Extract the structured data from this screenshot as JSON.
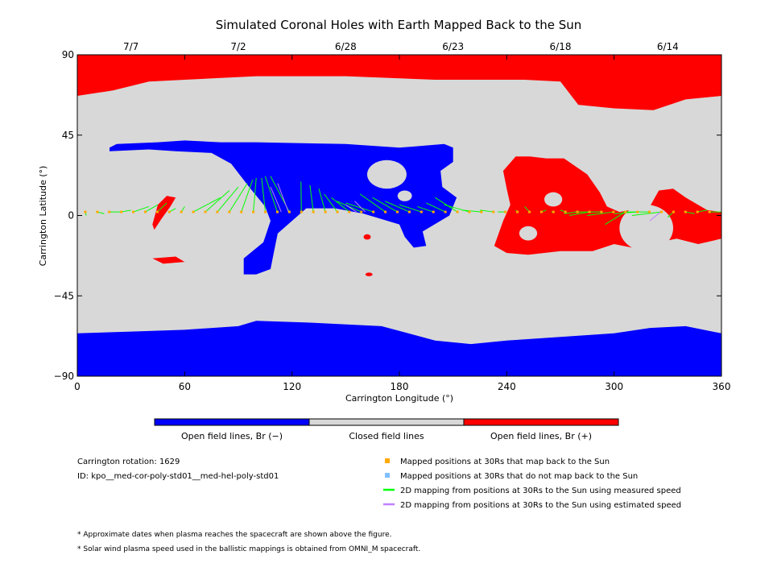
{
  "title": "Simulated Coronal Holes with Earth Mapped Back to the Sun",
  "colors": {
    "open_negative": "#0000ff",
    "closed": "#d8d8d8",
    "open_positive": "#ff0000",
    "mapped_back": "#ffaa00",
    "not_mapped_back": "#80c0ff",
    "measured_speed": "#00ff00",
    "estimated_speed": "#c080ff"
  },
  "chart_data": {
    "type": "map",
    "xlabel": "Carrington Longitude (°)",
    "ylabel": "Carrington Latitude (°)",
    "xlim": [
      0,
      360
    ],
    "ylim": [
      -90,
      90
    ],
    "x_ticks": [
      0,
      60,
      120,
      180,
      240,
      300,
      360
    ],
    "y_ticks": [
      90,
      45,
      0,
      -45,
      -90
    ],
    "y_tick_labels": [
      "90",
      "45",
      "0",
      "−45",
      "−90"
    ],
    "top_dates": [
      {
        "label": "7/7",
        "lon": 30
      },
      {
        "label": "7/2",
        "lon": 90
      },
      {
        "label": "6/28",
        "lon": 150
      },
      {
        "label": "6/23",
        "lon": 210
      },
      {
        "label": "6/18",
        "lon": 270
      },
      {
        "label": "6/14",
        "lon": 330
      }
    ],
    "regions": [
      {
        "polarity": "negative",
        "points": [
          [
            0,
            -66
          ],
          [
            30,
            -65
          ],
          [
            60,
            -64
          ],
          [
            90,
            -62
          ],
          [
            100,
            -59
          ],
          [
            130,
            -60
          ],
          [
            170,
            -62
          ],
          [
            200,
            -70
          ],
          [
            220,
            -72
          ],
          [
            240,
            -70
          ],
          [
            270,
            -68
          ],
          [
            300,
            -66
          ],
          [
            320,
            -63
          ],
          [
            340,
            -62
          ],
          [
            360,
            -66
          ],
          [
            360,
            -90
          ],
          [
            0,
            -90
          ]
        ]
      },
      {
        "polarity": "positive",
        "points": [
          [
            0,
            90
          ],
          [
            360,
            90
          ],
          [
            360,
            67
          ],
          [
            340,
            65
          ],
          [
            322,
            59
          ],
          [
            300,
            60
          ],
          [
            280,
            62
          ],
          [
            270,
            75
          ],
          [
            250,
            76
          ],
          [
            200,
            76
          ],
          [
            150,
            78
          ],
          [
            100,
            78
          ],
          [
            60,
            76
          ],
          [
            40,
            75
          ],
          [
            20,
            70
          ],
          [
            0,
            67
          ]
        ]
      },
      {
        "polarity": "negative",
        "points": [
          [
            18,
            38
          ],
          [
            22,
            40
          ],
          [
            45,
            41
          ],
          [
            60,
            42
          ],
          [
            80,
            41
          ],
          [
            100,
            41
          ],
          [
            150,
            40
          ],
          [
            180,
            38
          ],
          [
            205,
            40
          ],
          [
            210,
            38
          ],
          [
            210,
            30
          ],
          [
            203,
            25
          ],
          [
            204,
            16
          ],
          [
            212,
            10
          ],
          [
            208,
            0
          ],
          [
            193,
            -9
          ],
          [
            195,
            -17
          ],
          [
            188,
            -18
          ],
          [
            183,
            -12
          ],
          [
            180,
            -5
          ],
          [
            160,
            1
          ],
          [
            144,
            4
          ],
          [
            128,
            4
          ],
          [
            112,
            -10
          ],
          [
            110,
            -20
          ],
          [
            108,
            -30
          ],
          [
            100,
            -33
          ],
          [
            93,
            -33
          ],
          [
            93,
            -24
          ],
          [
            104,
            -15
          ],
          [
            108,
            -3
          ],
          [
            105,
            5
          ],
          [
            96,
            16
          ],
          [
            86,
            29
          ],
          [
            75,
            35
          ],
          [
            55,
            36
          ],
          [
            40,
            37
          ],
          [
            18,
            36
          ]
        ]
      },
      {
        "polarity": "positive",
        "points": [
          [
            240,
            15
          ],
          [
            238,
            25
          ],
          [
            245,
            33
          ],
          [
            253,
            33
          ],
          [
            262,
            32
          ],
          [
            272,
            32
          ],
          [
            285,
            23
          ],
          [
            292,
            13
          ],
          [
            296,
            5
          ],
          [
            303,
            2
          ],
          [
            320,
            5
          ],
          [
            325,
            14
          ],
          [
            333,
            15
          ],
          [
            340,
            10
          ],
          [
            352,
            3
          ],
          [
            360,
            2
          ],
          [
            360,
            -13
          ],
          [
            347,
            -16
          ],
          [
            335,
            -13
          ],
          [
            320,
            -16
          ],
          [
            310,
            -18
          ],
          [
            300,
            -16
          ],
          [
            288,
            -20
          ],
          [
            270,
            -20
          ],
          [
            252,
            -22
          ],
          [
            240,
            -21
          ],
          [
            233,
            -17
          ],
          [
            238,
            -3
          ],
          [
            242,
            6
          ]
        ]
      },
      {
        "polarity": "positive",
        "points": [
          [
            42,
            -5
          ],
          [
            45,
            6
          ],
          [
            50,
            11
          ],
          [
            55,
            10
          ],
          [
            52,
            5
          ],
          [
            47,
            -2
          ],
          [
            43,
            -8
          ]
        ]
      },
      {
        "polarity": "positive",
        "points": [
          [
            42,
            -24
          ],
          [
            55,
            -23
          ],
          [
            60,
            -26
          ],
          [
            48,
            -27
          ]
        ]
      }
    ],
    "holes": [
      {
        "cx": 173,
        "cy": 23,
        "rx": 11,
        "ry": 8
      },
      {
        "cx": 183,
        "cy": 11,
        "rx": 4,
        "ry": 3
      },
      {
        "cx": 266,
        "cy": 9,
        "rx": 5,
        "ry": 4
      },
      {
        "cx": 252,
        "cy": -10,
        "rx": 5,
        "ry": 4
      },
      {
        "cx": 318,
        "cy": -7,
        "rx": 15,
        "ry": 13
      }
    ],
    "small_blobs": [
      {
        "polarity": "positive",
        "cx": 162,
        "cy": -12,
        "rx": 2,
        "ry": 1.5
      },
      {
        "polarity": "positive",
        "cx": 163,
        "cy": -33,
        "rx": 2,
        "ry": 1
      }
    ],
    "mapped_longitudes_start": 2,
    "mapped_longitudes_step": 3,
    "mapped_latitude": 2,
    "measured_mappings": [
      [
        5,
        0
      ],
      [
        15,
        1
      ],
      [
        25,
        2
      ],
      [
        30,
        3
      ],
      [
        40,
        5
      ],
      [
        45,
        6
      ],
      [
        50,
        7
      ],
      [
        55,
        4
      ],
      [
        60,
        5
      ],
      [
        80,
        10
      ],
      [
        85,
        14
      ],
      [
        90,
        16
      ],
      [
        95,
        18
      ],
      [
        98,
        20
      ],
      [
        100,
        21
      ],
      [
        103,
        21
      ],
      [
        105,
        22
      ],
      [
        108,
        22
      ],
      [
        125,
        19
      ],
      [
        130,
        17
      ],
      [
        135,
        15
      ],
      [
        138,
        12
      ],
      [
        142,
        10
      ],
      [
        145,
        8
      ],
      [
        150,
        7
      ],
      [
        158,
        12
      ],
      [
        165,
        10
      ],
      [
        172,
        8
      ],
      [
        180,
        6
      ],
      [
        190,
        5
      ],
      [
        195,
        7
      ],
      [
        200,
        10
      ],
      [
        205,
        6
      ],
      [
        215,
        3
      ],
      [
        225,
        3
      ],
      [
        235,
        2
      ],
      [
        245,
        3
      ],
      [
        250,
        5
      ],
      [
        262,
        3
      ],
      [
        265,
        2
      ],
      [
        270,
        3
      ],
      [
        272,
        1
      ],
      [
        275,
        0
      ],
      [
        278,
        2
      ],
      [
        285,
        0
      ],
      [
        295,
        -5
      ],
      [
        300,
        1
      ],
      [
        305,
        2
      ],
      [
        310,
        0
      ],
      [
        330,
        -1
      ],
      [
        345,
        1
      ],
      [
        352,
        3
      ],
      [
        360,
        2
      ]
    ],
    "estimated_mappings": [
      [
        108,
        16
      ],
      [
        112,
        18
      ],
      [
        150,
        6
      ],
      [
        155,
        8
      ],
      [
        320,
        -3
      ]
    ],
    "colorbar": [
      "Open field lines, Br (−)",
      "Closed field lines",
      "Open field lines, Br (+)"
    ]
  },
  "info": {
    "rotation": "Carrington rotation: 1629",
    "id": "ID: kpo__med-cor-poly-std01__med-hel-poly-std01"
  },
  "legend": [
    {
      "kind": "square",
      "color": "#ffaa00",
      "label": "Mapped positions at 30Rs that map back to the Sun"
    },
    {
      "kind": "square",
      "color": "#80c0ff",
      "label": "Mapped positions at 30Rs that do not map back to the Sun"
    },
    {
      "kind": "line",
      "color": "#00ff00",
      "label": "2D mapping from positions at 30Rs to the Sun using measured speed"
    },
    {
      "kind": "line",
      "color": "#c080ff",
      "label": "2D mapping from positions at 30Rs to the Sun using estimated speed"
    }
  ],
  "notes": [
    "* Approximate dates when plasma reaches the spacecraft are shown above the figure.",
    "* Solar wind plasma speed used in the ballistic mappings is obtained from OMNI_M spacecraft."
  ]
}
